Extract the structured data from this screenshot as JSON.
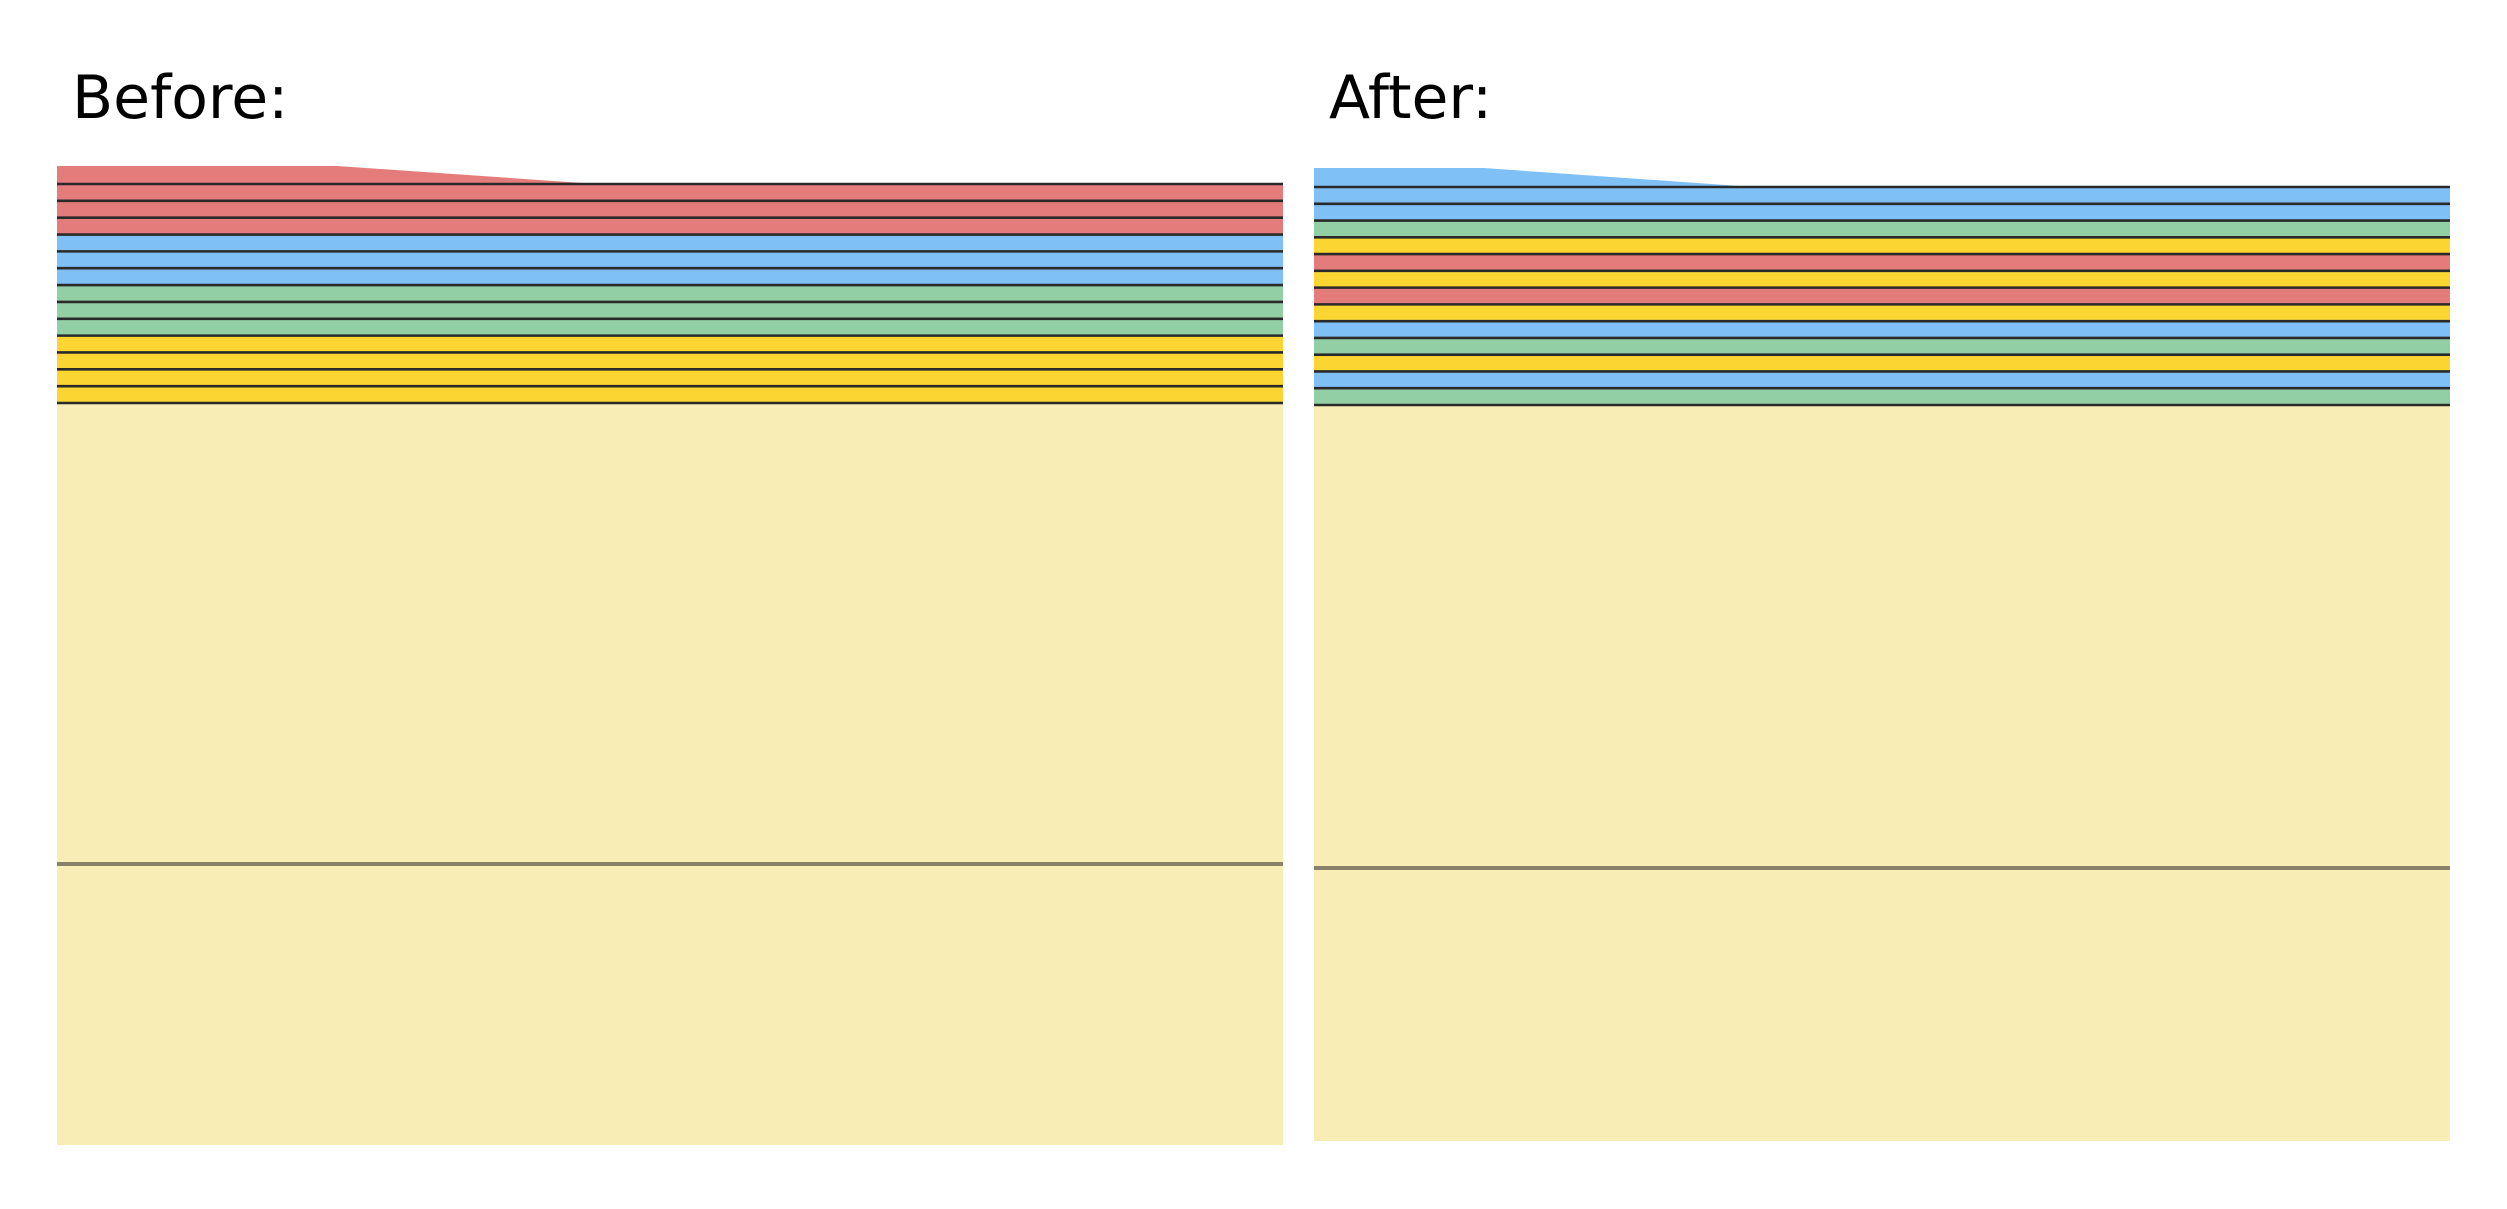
{
  "panels": {
    "before": {
      "label": "Before:",
      "top_layer_color_key": "red",
      "layers": [
        "red",
        "red",
        "red",
        "blue",
        "blue",
        "blue",
        "green",
        "green",
        "green",
        "yellow",
        "yellow",
        "yellow",
        "yellow"
      ]
    },
    "after": {
      "label": "After:",
      "top_layer_color_key": "blue",
      "layers": [
        "blue",
        "blue",
        "green",
        "yellow",
        "red",
        "yellow",
        "red",
        "yellow",
        "blue",
        "green",
        "yellow",
        "blue",
        "green"
      ]
    }
  },
  "colors": {
    "red": "#e57c7c",
    "blue": "#7fc0f7",
    "green": "#92cfa4",
    "yellow": "#fbd633",
    "substrate": "#f9edb6",
    "line": "#2a2a2a",
    "base_line": "#888068"
  }
}
